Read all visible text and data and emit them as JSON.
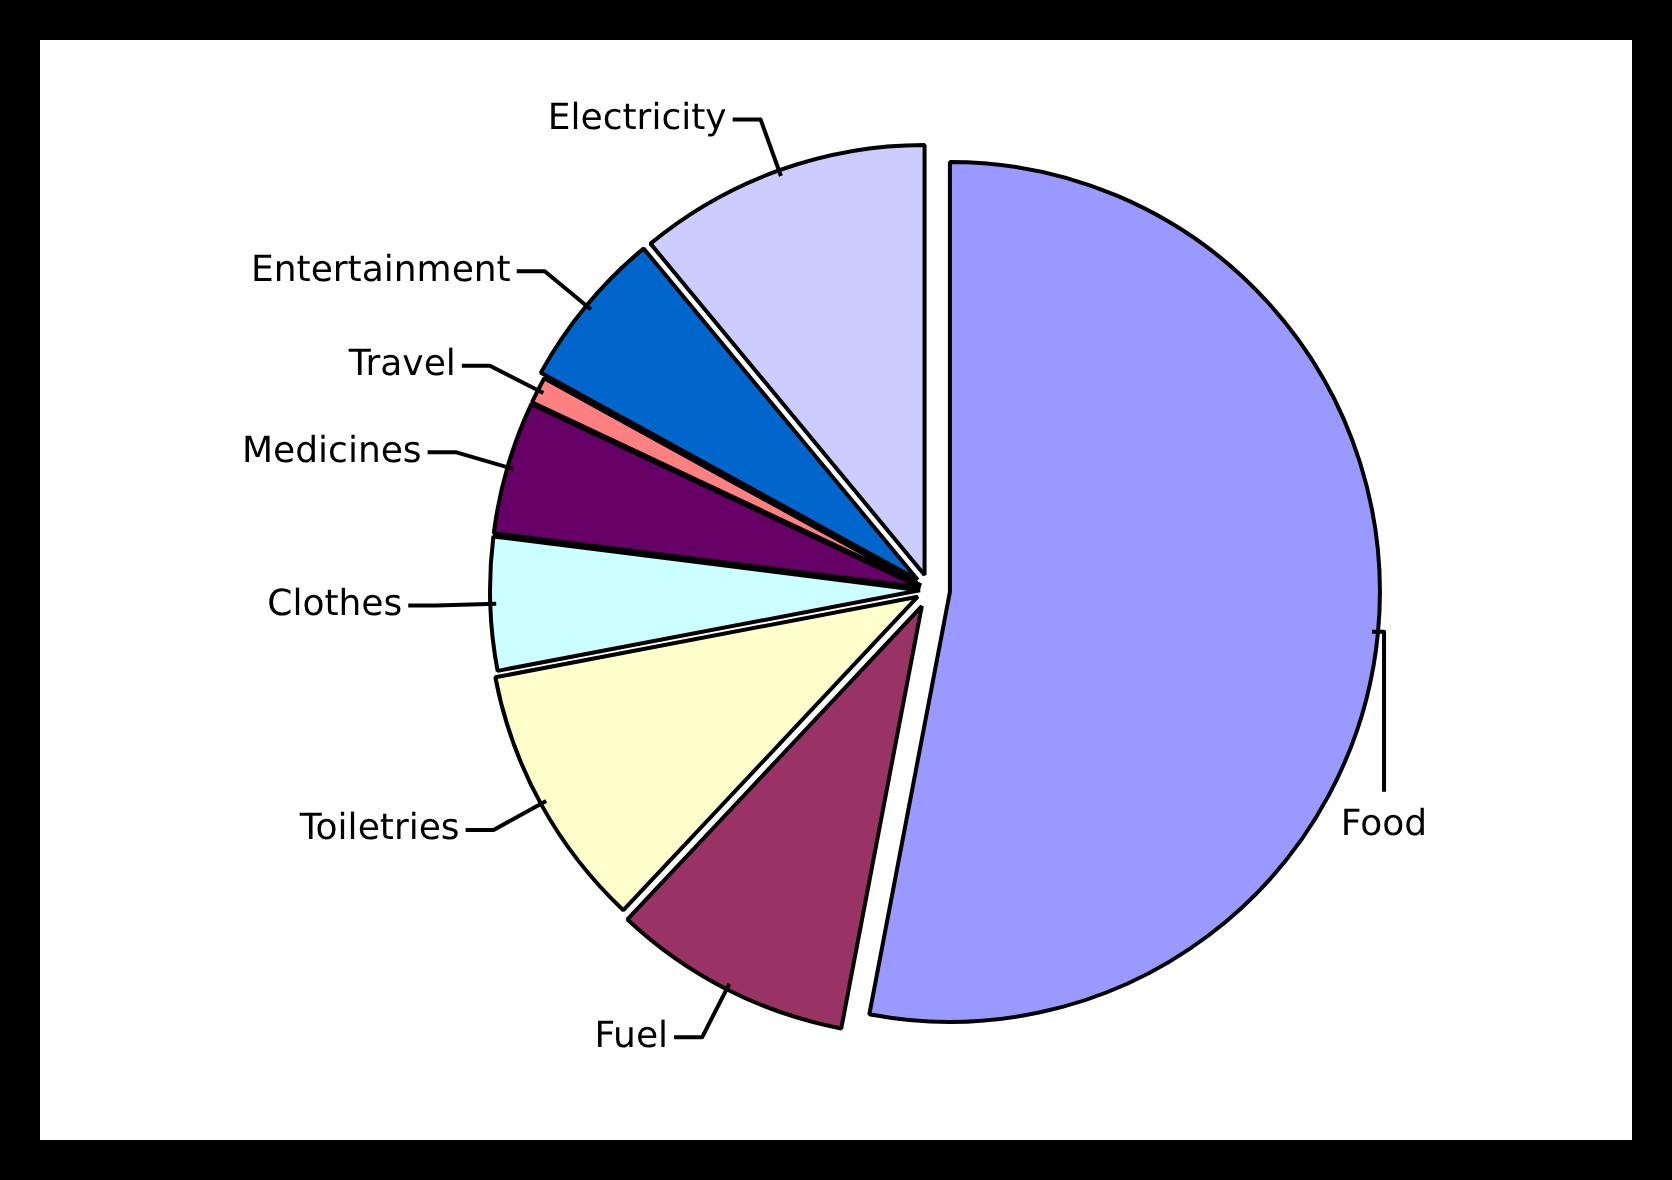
{
  "chart_data": {
    "type": "pie",
    "categories": [
      "Food",
      "Fuel",
      "Toiletries",
      "Clothes",
      "Medicines",
      "Travel",
      "Entertainment",
      "Electricity"
    ],
    "values": [
      53,
      9,
      10,
      5,
      5,
      1,
      6,
      11
    ],
    "colors": [
      "#9999ff",
      "#993366",
      "#ffffcc",
      "#ccffff",
      "#660066",
      "#ff8080",
      "#0066cc",
      "#ccccff"
    ],
    "legend": false
  }
}
